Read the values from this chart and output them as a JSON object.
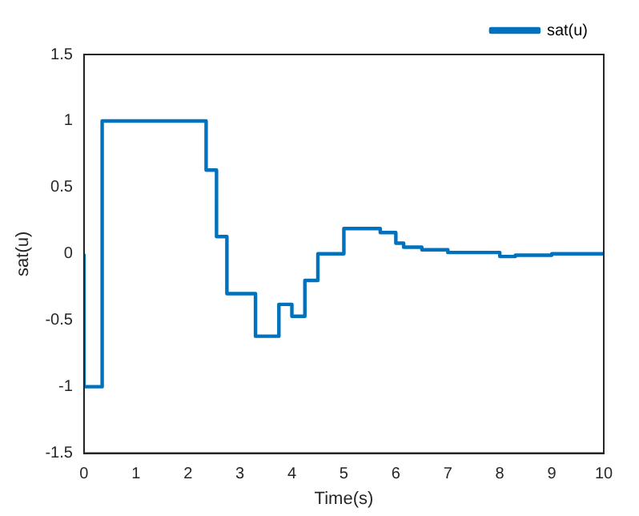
{
  "chart_data": {
    "type": "step",
    "xlabel": "Time(s)",
    "ylabel": "sat(u)",
    "xlim": [
      0,
      10
    ],
    "ylim": [
      -1.5,
      1.5
    ],
    "xticks": [
      0,
      1,
      2,
      3,
      4,
      5,
      6,
      7,
      8,
      9,
      10
    ],
    "yticks": [
      -1.5,
      -1,
      -0.5,
      0,
      0.5,
      1,
      1.5
    ],
    "grid": false,
    "legend": "top right",
    "line_style": "solid",
    "marker": "none",
    "series": [
      {
        "name": "sat(u)",
        "color": "#0072bd",
        "x": [
          0,
          0,
          0.35,
          2.35,
          2.55,
          2.75,
          3.3,
          3.75,
          4.0,
          4.25,
          4.5,
          5.0,
          5.7,
          6.0,
          6.15,
          6.5,
          7.0,
          8.0,
          8.3,
          9.0,
          10
        ],
        "values": [
          0,
          -1,
          1,
          0.63,
          0.13,
          -0.3,
          -0.62,
          -0.38,
          -0.47,
          -0.2,
          0,
          0.19,
          0.16,
          0.08,
          0.05,
          0.03,
          0.01,
          -0.02,
          -0.01,
          0,
          0
        ]
      }
    ]
  }
}
